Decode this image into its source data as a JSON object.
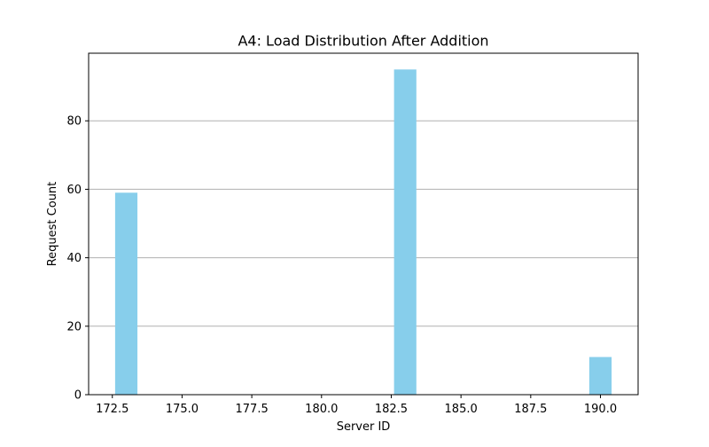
{
  "chart_data": {
    "type": "bar",
    "title": "A4: Load Distribution After Addition",
    "xlabel": "Server ID",
    "ylabel": "Request Count",
    "x": [
      173,
      183,
      190
    ],
    "values": [
      59,
      95,
      11
    ],
    "bar_width": 0.8,
    "xlim": [
      171.65,
      191.35
    ],
    "ylim": [
      0,
      99.75
    ],
    "xticks": [
      "172.5",
      "175.0",
      "177.5",
      "180.0",
      "182.5",
      "185.0",
      "187.5",
      "190.0"
    ],
    "yticks": [
      "0",
      "20",
      "40",
      "60",
      "80"
    ],
    "grid": "y-axis",
    "bar_color": "#87ceeb"
  }
}
